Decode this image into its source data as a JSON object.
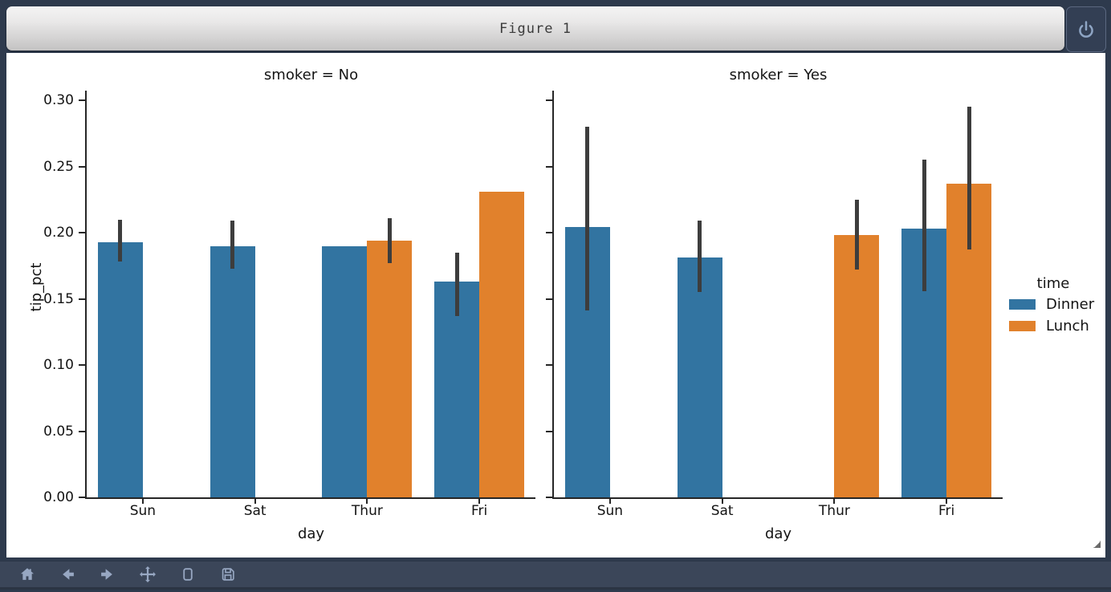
{
  "window": {
    "title": "Figure 1"
  },
  "power_button": {
    "icon": "power-icon"
  },
  "toolbar": {
    "buttons": [
      {
        "name": "home",
        "icon": "home-icon"
      },
      {
        "name": "back",
        "icon": "arrow-left-icon"
      },
      {
        "name": "forward",
        "icon": "arrow-right-icon"
      },
      {
        "name": "pan",
        "icon": "move-icon"
      },
      {
        "name": "zoom",
        "icon": "zoom-rect-icon"
      },
      {
        "name": "save",
        "icon": "save-icon"
      }
    ]
  },
  "colors": {
    "dinner_blue": "#3274a1",
    "lunch_orange": "#e1812c",
    "error_bar": "#3d3d3d",
    "window_chrome": "#2e3a4d",
    "toolbar_bg": "#3b4659",
    "toolbar_icon": "#97a7c2",
    "canvas_bg": "#ffffff"
  },
  "chart_data": {
    "type": "bar",
    "facet_variable": "smoker",
    "categories": [
      "Sun",
      "Sat",
      "Thur",
      "Fri"
    ],
    "xlabel": "day",
    "ylabel": "tip_pct",
    "ylim": [
      0,
      0.31
    ],
    "grid": false,
    "yticks": {
      "values": [
        0.0,
        0.05,
        0.1,
        0.15,
        0.2,
        0.25,
        0.3
      ],
      "labels": [
        "0.00",
        "0.05",
        "0.10",
        "0.15",
        "0.20",
        "0.25",
        "0.30"
      ]
    },
    "legend": {
      "title": "time",
      "position": "right",
      "entries": [
        {
          "label": "Dinner",
          "color": "#3274a1"
        },
        {
          "label": "Lunch",
          "color": "#e1812c"
        }
      ]
    },
    "facets": [
      {
        "title": "smoker = No",
        "series": [
          {
            "name": "Dinner",
            "values": [
              0.193,
              0.19,
              0.19,
              0.163
            ],
            "ci_low": [
              0.178,
              0.173,
              null,
              0.137
            ],
            "ci_high": [
              0.21,
              0.209,
              null,
              0.185
            ]
          },
          {
            "name": "Lunch",
            "values": [
              null,
              null,
              0.194,
              0.231
            ],
            "ci_low": [
              null,
              null,
              0.177,
              null
            ],
            "ci_high": [
              null,
              null,
              0.211,
              null
            ]
          }
        ]
      },
      {
        "title": "smoker = Yes",
        "series": [
          {
            "name": "Dinner",
            "values": [
              0.204,
              0.181,
              null,
              0.203
            ],
            "ci_low": [
              0.141,
              0.155,
              null,
              0.156
            ],
            "ci_high": [
              0.28,
              0.209,
              null,
              0.255
            ]
          },
          {
            "name": "Lunch",
            "values": [
              null,
              null,
              0.198,
              0.237
            ],
            "ci_low": [
              null,
              null,
              0.172,
              0.187
            ],
            "ci_high": [
              null,
              null,
              0.225,
              0.295
            ]
          }
        ]
      }
    ]
  }
}
